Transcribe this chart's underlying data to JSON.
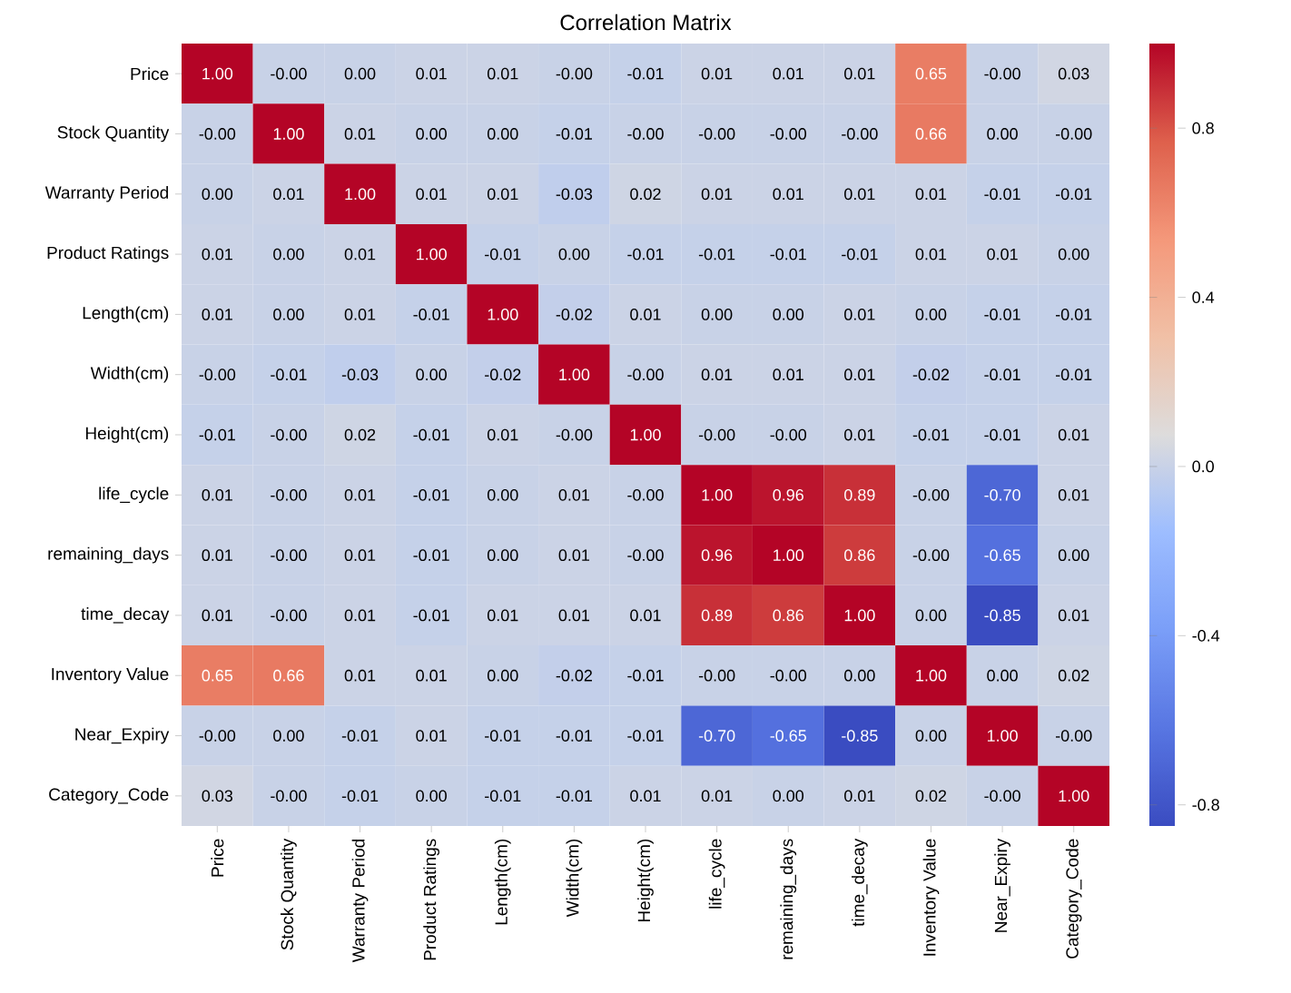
{
  "chart_data": {
    "type": "heatmap",
    "title": "Correlation Matrix",
    "categories": [
      "Price",
      "Stock Quantity",
      "Warranty Period",
      "Product Ratings",
      "Length(cm)",
      "Width(cm)",
      "Height(cm)",
      "life_cycle",
      "remaining_days",
      "time_decay",
      "Inventory Value",
      "Near_Expiry",
      "Category_Code"
    ],
    "y_categories": [
      "Price",
      "Stock Quantity",
      "Warranty Period",
      "Product Ratings",
      "Length(cm)",
      "Width(cm)",
      "Height(cm)",
      "life_cycle",
      "remaining_days",
      "time_decay",
      "Inventory Value",
      "Near_Expiry",
      "Category_Code"
    ],
    "cells": [
      [
        1.0,
        0.0,
        0.0,
        0.01,
        0.01,
        0.0,
        -0.01,
        0.01,
        0.01,
        0.01,
        0.65,
        0.0,
        0.03
      ],
      [
        0.0,
        1.0,
        0.01,
        0.0,
        0.0,
        -0.01,
        0.0,
        0.0,
        0.0,
        0.0,
        0.66,
        0.0,
        0.0
      ],
      [
        0.0,
        0.01,
        1.0,
        0.01,
        0.01,
        -0.03,
        0.02,
        0.01,
        0.01,
        0.01,
        0.01,
        -0.01,
        -0.01
      ],
      [
        0.01,
        0.0,
        0.01,
        1.0,
        -0.01,
        0.0,
        -0.01,
        -0.01,
        -0.01,
        -0.01,
        0.01,
        0.01,
        0.0
      ],
      [
        0.01,
        0.0,
        0.01,
        -0.01,
        1.0,
        -0.02,
        0.01,
        0.0,
        0.0,
        0.01,
        0.0,
        -0.01,
        -0.01
      ],
      [
        0.0,
        -0.01,
        -0.03,
        0.0,
        -0.02,
        1.0,
        0.0,
        0.01,
        0.01,
        0.01,
        -0.02,
        -0.01,
        -0.01
      ],
      [
        -0.01,
        0.0,
        0.02,
        -0.01,
        0.01,
        0.0,
        1.0,
        0.0,
        0.0,
        0.01,
        -0.01,
        -0.01,
        0.01
      ],
      [
        0.01,
        0.0,
        0.01,
        -0.01,
        0.0,
        0.01,
        0.0,
        1.0,
        0.96,
        0.89,
        0.0,
        -0.7,
        0.01
      ],
      [
        0.01,
        0.0,
        0.01,
        -0.01,
        0.0,
        0.01,
        0.0,
        0.96,
        1.0,
        0.86,
        0.0,
        -0.65,
        0.0
      ],
      [
        0.01,
        0.0,
        0.01,
        -0.01,
        0.01,
        0.01,
        0.01,
        0.89,
        0.86,
        1.0,
        0.0,
        -0.85,
        0.01
      ],
      [
        0.65,
        0.66,
        0.01,
        0.01,
        0.0,
        -0.02,
        -0.01,
        0.0,
        0.0,
        0.0,
        1.0,
        0.0,
        0.02
      ],
      [
        0.0,
        0.0,
        -0.01,
        0.01,
        -0.01,
        -0.01,
        -0.01,
        -0.7,
        -0.65,
        -0.85,
        0.0,
        1.0,
        0.0
      ],
      [
        0.03,
        0.0,
        -0.01,
        0.0,
        -0.01,
        -0.01,
        0.01,
        0.01,
        0.0,
        0.01,
        0.02,
        0.0,
        1.0
      ]
    ],
    "cell_labels": [
      [
        "1.00",
        "-0.00",
        "0.00",
        "0.01",
        "0.01",
        "-0.00",
        "-0.01",
        "0.01",
        "0.01",
        "0.01",
        "0.65",
        "-0.00",
        "0.03"
      ],
      [
        "-0.00",
        "1.00",
        "0.01",
        "0.00",
        "0.00",
        "-0.01",
        "-0.00",
        "-0.00",
        "-0.00",
        "-0.00",
        "0.66",
        "0.00",
        "-0.00"
      ],
      [
        "0.00",
        "0.01",
        "1.00",
        "0.01",
        "0.01",
        "-0.03",
        "0.02",
        "0.01",
        "0.01",
        "0.01",
        "0.01",
        "-0.01",
        "-0.01"
      ],
      [
        "0.01",
        "0.00",
        "0.01",
        "1.00",
        "-0.01",
        "0.00",
        "-0.01",
        "-0.01",
        "-0.01",
        "-0.01",
        "0.01",
        "0.01",
        "0.00"
      ],
      [
        "0.01",
        "0.00",
        "0.01",
        "-0.01",
        "1.00",
        "-0.02",
        "0.01",
        "0.00",
        "0.00",
        "0.01",
        "0.00",
        "-0.01",
        "-0.01"
      ],
      [
        "-0.00",
        "-0.01",
        "-0.03",
        "0.00",
        "-0.02",
        "1.00",
        "-0.00",
        "0.01",
        "0.01",
        "0.01",
        "-0.02",
        "-0.01",
        "-0.01"
      ],
      [
        "-0.01",
        "-0.00",
        "0.02",
        "-0.01",
        "0.01",
        "-0.00",
        "1.00",
        "-0.00",
        "-0.00",
        "0.01",
        "-0.01",
        "-0.01",
        "0.01"
      ],
      [
        "0.01",
        "-0.00",
        "0.01",
        "-0.01",
        "0.00",
        "0.01",
        "-0.00",
        "1.00",
        "0.96",
        "0.89",
        "-0.00",
        "-0.70",
        "0.01"
      ],
      [
        "0.01",
        "-0.00",
        "0.01",
        "-0.01",
        "0.00",
        "0.01",
        "-0.00",
        "0.96",
        "1.00",
        "0.86",
        "-0.00",
        "-0.65",
        "0.00"
      ],
      [
        "0.01",
        "-0.00",
        "0.01",
        "-0.01",
        "0.01",
        "0.01",
        "0.01",
        "0.89",
        "0.86",
        "1.00",
        "0.00",
        "-0.85",
        "0.01"
      ],
      [
        "0.65",
        "0.66",
        "0.01",
        "0.01",
        "0.00",
        "-0.02",
        "-0.01",
        "-0.00",
        "-0.00",
        "0.00",
        "1.00",
        "0.00",
        "0.02"
      ],
      [
        "-0.00",
        "0.00",
        "-0.01",
        "0.01",
        "-0.01",
        "-0.01",
        "-0.01",
        "-0.70",
        "-0.65",
        "-0.85",
        "0.00",
        "1.00",
        "-0.00"
      ],
      [
        "0.03",
        "-0.00",
        "-0.01",
        "0.00",
        "-0.01",
        "-0.01",
        "0.01",
        "0.01",
        "0.00",
        "0.01",
        "0.02",
        "-0.00",
        "1.00"
      ]
    ],
    "clim": [
      -0.85,
      1.0
    ],
    "cticks": [
      -0.8,
      -0.4,
      {
        "value": 0,
        "label": "0.0"
      },
      0.4,
      0.8
    ]
  }
}
